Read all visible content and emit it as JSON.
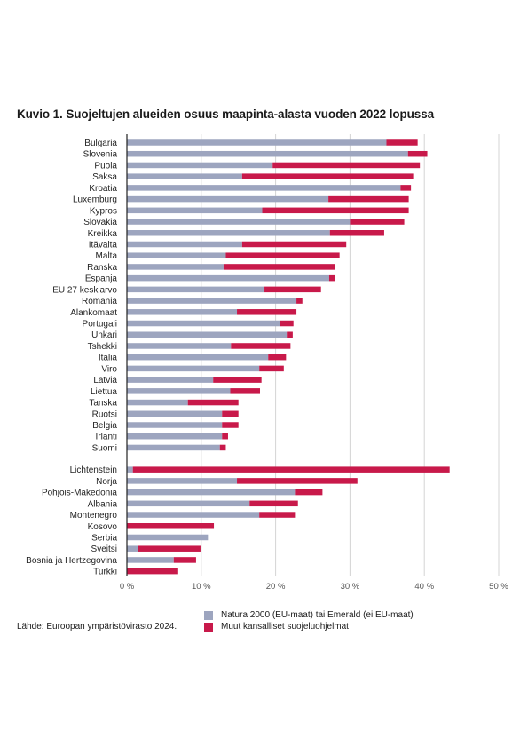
{
  "title": "Kuvio 1. Suojeltujen alueiden osuus maapinta-alasta vuoden 2022 lopussa",
  "source": "Lähde: Euroopan ympäristövirasto 2024.",
  "colors": {
    "natura": "#9da5bf",
    "other": "#c8194a",
    "axis": "#222222",
    "grid": "#d4d4d4"
  },
  "chart_data": {
    "type": "bar",
    "orientation": "horizontal",
    "stacked": true,
    "xlim": [
      0,
      50
    ],
    "x_ticks": [
      "0 %",
      "10 %",
      "20 %",
      "30 %",
      "40 %",
      "50 %"
    ],
    "x_tick_values": [
      0,
      10,
      20,
      30,
      40,
      50
    ],
    "grid": true,
    "legend_position": "bottom",
    "groups": [
      {
        "categories": [
          "Bulgaria",
          "Slovenia",
          "Puola",
          "Saksa",
          "Kroatia",
          "Luxemburg",
          "Kypros",
          "Slovakia",
          "Kreikka",
          "Itävalta",
          "Malta",
          "Ranska",
          "Espanja",
          "EU 27 keskiarvo",
          "Romania",
          "Alankomaat",
          "Portugali",
          "Unkari",
          "Tshekki",
          "Italia",
          "Viro",
          "Latvia",
          "Liettua",
          "Tanska",
          "Ruotsi",
          "Belgia",
          "Irlanti",
          "Suomi"
        ],
        "natura": [
          34.9,
          37.8,
          19.6,
          15.5,
          36.8,
          27.1,
          18.2,
          30.0,
          27.3,
          15.5,
          13.3,
          13.0,
          27.2,
          18.5,
          22.8,
          14.8,
          20.6,
          21.5,
          14.0,
          19.0,
          17.8,
          11.6,
          13.9,
          8.2,
          12.8,
          12.8,
          12.8,
          12.5
        ],
        "other": [
          4.2,
          2.6,
          19.8,
          23.0,
          1.4,
          10.8,
          19.7,
          7.3,
          7.3,
          14.0,
          15.3,
          15.0,
          0.8,
          7.6,
          0.8,
          8.0,
          1.8,
          0.8,
          8.0,
          2.4,
          3.3,
          6.5,
          4.0,
          6.8,
          2.2,
          2.2,
          0.8,
          0.8
        ]
      },
      {
        "categories": [
          "Lichtenstein",
          "Norja",
          "Pohjois-Makedonia",
          "Albania",
          "Montenegro",
          "Kosovo",
          "Serbia",
          "Sveitsi",
          "Bosnia ja Hertzegovina",
          "Turkki"
        ],
        "natura": [
          0.8,
          14.8,
          22.6,
          16.5,
          17.8,
          0,
          10.9,
          1.5,
          6.3,
          0
        ],
        "other": [
          42.6,
          16.2,
          3.7,
          6.5,
          4.8,
          11.7,
          0,
          8.4,
          3.0,
          6.9
        ]
      }
    ],
    "series": [
      {
        "name": "Natura 2000 (EU-maat) tai Emerald (ei EU-maat)",
        "key": "natura"
      },
      {
        "name": "Muut kansalliset suojeluohjelmat",
        "key": "other"
      }
    ]
  }
}
